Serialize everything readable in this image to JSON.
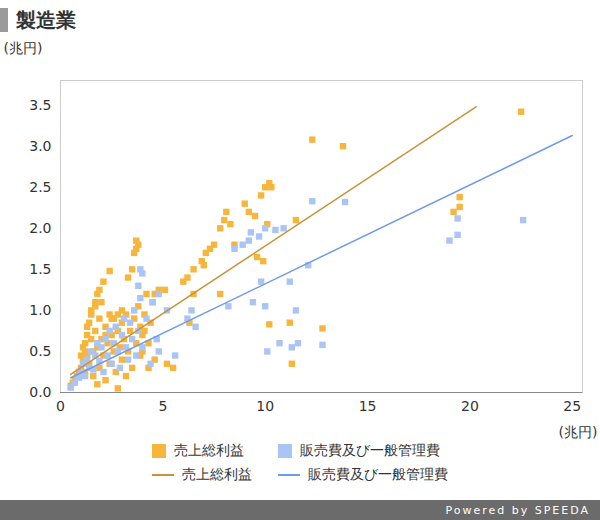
{
  "chart_data": {
    "type": "scatter",
    "title": "製造業",
    "y_label": "(兆円)",
    "x_label": "(兆円)",
    "caption": "Powered by SPEEDA",
    "xlim": [
      0,
      25.5
    ],
    "ylim": [
      0,
      3.8
    ],
    "xticks": [
      0,
      5,
      10,
      15,
      20,
      25
    ],
    "yticks": [
      {
        "value": 0,
        "label": "0.0"
      },
      {
        "value": 0.5,
        "label": "0.5"
      },
      {
        "value": 1,
        "label": "1.0"
      },
      {
        "value": 1.5,
        "label": "1.5"
      },
      {
        "value": 2,
        "label": "2.0"
      },
      {
        "value": 2.5,
        "label": "2.5"
      },
      {
        "value": 3,
        "label": "3.0"
      },
      {
        "value": 3.5,
        "label": "3.5"
      }
    ],
    "grid": false,
    "series": [
      {
        "name": "売上総利益",
        "color": "#f7b53b",
        "type": "scatter",
        "marker": "square",
        "x": [
          0.5,
          0.6,
          0.7,
          0.8,
          0.9,
          1.0,
          1.0,
          1.1,
          1.1,
          1.2,
          1.2,
          1.3,
          1.3,
          1.4,
          1.4,
          1.5,
          1.5,
          1.6,
          1.6,
          1.7,
          1.7,
          1.8,
          1.9,
          1.9,
          2.0,
          2.0,
          2.1,
          2.2,
          2.2,
          2.3,
          2.4,
          2.4,
          2.5,
          2.6,
          2.6,
          2.7,
          2.8,
          2.9,
          3.0,
          3.0,
          3.1,
          3.2,
          3.3,
          3.4,
          3.5,
          3.6,
          3.7,
          3.8,
          3.9,
          4.0,
          4.1,
          4.3,
          4.4,
          4.6,
          2.1,
          1.8,
          2.8,
          3.2,
          3.7,
          3.8,
          3.6,
          3.7,
          3.5,
          3.3,
          2.4,
          1.9,
          1.8,
          1.7,
          1.5,
          1.3,
          4.5,
          4.8,
          5.1,
          4.6,
          4.2,
          6.2,
          6.5,
          6.9,
          7.1,
          7.3,
          7.5,
          7.8,
          8.0,
          8.1,
          8.3,
          8.5,
          9.0,
          9.2,
          9.5,
          9.8,
          10.0,
          10.2,
          10.3,
          10.1,
          9.6,
          9.9,
          11.5,
          12.3,
          13.8,
          10.2,
          11.2,
          11.3,
          12.8,
          19.5,
          19.2,
          19.5,
          22.5,
          6.5,
          6.0,
          7.0,
          5.5,
          5.2,
          4.3,
          4.0,
          3.9,
          4.1,
          6.3,
          7.8,
          2.5,
          2.8,
          3.0,
          2.2,
          1.2
        ],
        "values": [
          0.08,
          0.12,
          0.15,
          0.2,
          0.25,
          0.3,
          0.45,
          0.55,
          0.38,
          0.6,
          0.25,
          0.7,
          0.45,
          0.85,
          0.35,
          0.65,
          1.0,
          0.5,
          0.2,
          0.75,
          1.05,
          0.55,
          0.9,
          0.3,
          0.65,
          1.1,
          0.45,
          0.8,
          0.15,
          0.6,
          0.95,
          0.35,
          0.7,
          0.5,
          0.9,
          0.25,
          0.75,
          0.55,
          0.85,
          0.4,
          0.65,
          0.95,
          0.5,
          0.75,
          0.3,
          0.9,
          0.6,
          1.05,
          0.45,
          0.7,
          0.95,
          0.6,
          0.85,
          0.4,
          1.35,
          0.1,
          0.05,
          0.2,
          1.85,
          1.8,
          1.7,
          1.75,
          1.5,
          1.4,
          1.48,
          1.25,
          1.2,
          1.1,
          0.95,
          0.8,
          1.1,
          1.25,
          1.25,
          1.2,
          1.2,
          1.4,
          1.5,
          1.6,
          1.7,
          1.75,
          1.8,
          2.0,
          2.1,
          2.2,
          2.05,
          1.8,
          2.3,
          2.2,
          2.15,
          2.4,
          2.5,
          2.55,
          2.5,
          2.05,
          1.65,
          1.6,
          2.1,
          3.08,
          3.0,
          0.83,
          0.85,
          0.35,
          0.78,
          2.38,
          2.2,
          2.26,
          3.42,
          1.2,
          1.35,
          1.55,
          0.3,
          0.35,
          0.3,
          0.5,
          0.8,
          0.75,
          0.85,
          1.2,
          0.9,
          0.95,
          1.0,
          0.7,
          0.5
        ]
      },
      {
        "name": "販売費及び一般管理費",
        "color": "#aac4f6",
        "type": "scatter",
        "marker": "square",
        "x": [
          0.5,
          0.7,
          0.9,
          1.0,
          1.1,
          1.2,
          1.3,
          1.4,
          1.5,
          1.6,
          1.7,
          1.8,
          1.9,
          2.0,
          2.1,
          2.2,
          2.3,
          2.4,
          2.5,
          2.6,
          2.7,
          2.8,
          2.9,
          3.0,
          3.1,
          3.2,
          3.3,
          3.4,
          3.5,
          3.6,
          3.7,
          3.8,
          3.9,
          4.0,
          4.2,
          4.4,
          4.5,
          4.7,
          3.8,
          4.0,
          3.9,
          4.8,
          5.2,
          6.2,
          6.4,
          6.6,
          5.6,
          4.8,
          8.5,
          8.9,
          9.2,
          9.3,
          9.7,
          10.0,
          10.5,
          10.9,
          9.8,
          8.2,
          9.4,
          10.0,
          10.1,
          10.7,
          11.3,
          11.6,
          11.5,
          12.1,
          12.3,
          13.9,
          11.2,
          12.8,
          19.0,
          19.4,
          19.4,
          22.6
        ],
        "values": [
          0.06,
          0.12,
          0.18,
          0.25,
          0.35,
          0.2,
          0.4,
          0.3,
          0.5,
          0.28,
          0.45,
          0.6,
          0.38,
          0.55,
          0.25,
          0.65,
          0.45,
          0.75,
          0.35,
          0.6,
          0.8,
          0.5,
          0.3,
          0.7,
          0.9,
          0.55,
          0.4,
          0.85,
          0.65,
          1.0,
          0.45,
          0.75,
          1.15,
          0.55,
          0.9,
          0.35,
          1.1,
          0.65,
          1.3,
          1.45,
          1.5,
          1.2,
          1.0,
          0.9,
          1.0,
          0.8,
          0.45,
          0.5,
          1.75,
          1.8,
          1.85,
          1.95,
          1.9,
          2.0,
          1.98,
          2.0,
          1.35,
          1.05,
          1.1,
          1.05,
          0.5,
          0.6,
          0.55,
          0.6,
          1.0,
          1.55,
          2.33,
          2.32,
          1.35,
          0.58,
          1.85,
          1.92,
          2.12,
          2.1
        ]
      },
      {
        "name": "売上総利益",
        "color": "#c8923a",
        "type": "line",
        "x": [
          0.5,
          20.3
        ],
        "values": [
          0.22,
          3.48
        ]
      },
      {
        "name": "販売費及び一般管理費",
        "color": "#6f9be8",
        "type": "line",
        "x": [
          0.5,
          25.0
        ],
        "values": [
          0.18,
          3.13
        ]
      }
    ]
  }
}
